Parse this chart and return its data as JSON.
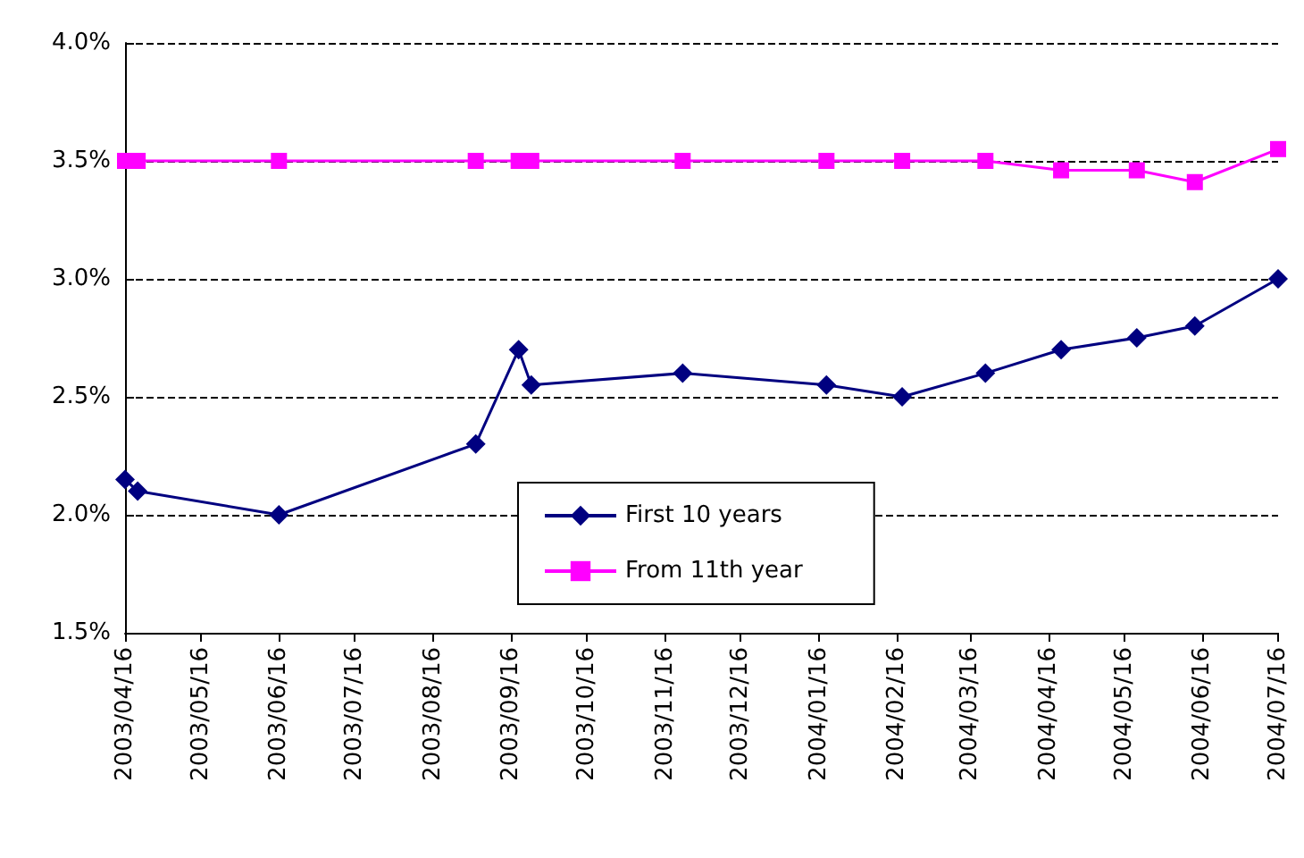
{
  "chart_data": {
    "type": "line",
    "x": [
      "2003-04-16",
      "2003-04-21",
      "2003-06-16",
      "2003-09-02",
      "2003-09-19",
      "2003-09-24",
      "2003-11-23",
      "2004-01-19",
      "2004-02-18",
      "2004-03-22",
      "2004-04-21",
      "2004-05-21",
      "2004-06-13",
      "2004-07-16"
    ],
    "series": [
      {
        "name": "First 10 years",
        "color": "#000080",
        "marker": "diamond",
        "values": [
          2.15,
          2.1,
          2.0,
          2.3,
          2.7,
          2.55,
          2.6,
          2.55,
          2.5,
          2.6,
          2.7,
          2.75,
          2.8,
          3.0
        ]
      },
      {
        "name": "From 11th year",
        "color": "#ff00ff",
        "marker": "square",
        "values": [
          3.5,
          3.5,
          3.5,
          3.5,
          3.5,
          3.5,
          3.5,
          3.5,
          3.5,
          3.5,
          3.46,
          3.46,
          3.41,
          3.55
        ]
      }
    ],
    "xlim": [
      "2003-04-16",
      "2004-07-16"
    ],
    "xticks": [
      {
        "value": "2003-04-16",
        "label": "2003/04/16"
      },
      {
        "value": "2003-05-16",
        "label": "2003/05/16"
      },
      {
        "value": "2003-06-16",
        "label": "2003/06/16"
      },
      {
        "value": "2003-07-16",
        "label": "2003/07/16"
      },
      {
        "value": "2003-08-16",
        "label": "2003/08/16"
      },
      {
        "value": "2003-09-16",
        "label": "2003/09/16"
      },
      {
        "value": "2003-10-16",
        "label": "2003/10/16"
      },
      {
        "value": "2003-11-16",
        "label": "2003/11/16"
      },
      {
        "value": "2003-12-16",
        "label": "2003/12/16"
      },
      {
        "value": "2004-01-16",
        "label": "2004/01/16"
      },
      {
        "value": "2004-02-16",
        "label": "2004/02/16"
      },
      {
        "value": "2004-03-16",
        "label": "2004/03/16"
      },
      {
        "value": "2004-04-16",
        "label": "2004/04/16"
      },
      {
        "value": "2004-05-16",
        "label": "2004/05/16"
      },
      {
        "value": "2004-06-16",
        "label": "2004/06/16"
      },
      {
        "value": "2004-07-16",
        "label": "2004/07/16"
      }
    ],
    "ylim": [
      1.5,
      4.0
    ],
    "yticks": [
      {
        "value": 1.5,
        "label": "1.5%"
      },
      {
        "value": 2.0,
        "label": "2.0%"
      },
      {
        "value": 2.5,
        "label": "2.5%"
      },
      {
        "value": 3.0,
        "label": "3.0%"
      },
      {
        "value": 3.5,
        "label": "3.5%"
      },
      {
        "value": 4.0,
        "label": "4.0%"
      }
    ],
    "grid": "y",
    "line_style": "solid",
    "legend": "bottom"
  }
}
